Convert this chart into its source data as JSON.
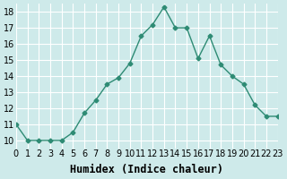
{
  "x": [
    0,
    1,
    2,
    3,
    4,
    5,
    6,
    7,
    8,
    9,
    10,
    11,
    12,
    13,
    14,
    15,
    16,
    17,
    18,
    19,
    20,
    21,
    22,
    23
  ],
  "y": [
    11,
    10,
    10,
    10,
    10,
    10.5,
    11.7,
    12.5,
    13.5,
    13.9,
    14.8,
    16.5,
    17.2,
    18.3,
    17.0,
    17.0,
    15.1,
    16.5,
    14.7,
    14.0,
    13.5,
    12.2,
    11.5,
    11.5
  ],
  "xlabel": "Humidex (Indice chaleur)",
  "ylabel": "",
  "xlim": [
    0,
    23
  ],
  "ylim": [
    9.5,
    18.5
  ],
  "yticks": [
    10,
    11,
    12,
    13,
    14,
    15,
    16,
    17,
    18
  ],
  "xticks": [
    0,
    1,
    2,
    3,
    4,
    5,
    6,
    7,
    8,
    9,
    10,
    11,
    12,
    13,
    14,
    15,
    16,
    17,
    18,
    19,
    20,
    21,
    22,
    23
  ],
  "xtick_labels": [
    "0",
    "1",
    "2",
    "3",
    "4",
    "5",
    "6",
    "7",
    "8",
    "9",
    "10",
    "11",
    "12",
    "13",
    "14",
    "15",
    "16",
    "17",
    "18",
    "19",
    "20",
    "21",
    "22",
    "23"
  ],
  "line_color": "#2e8b74",
  "marker": "D",
  "marker_size": 2.5,
  "bg_color": "#ceeaea",
  "grid_color": "#ffffff",
  "xlabel_fontsize": 8.5,
  "tick_fontsize": 7
}
